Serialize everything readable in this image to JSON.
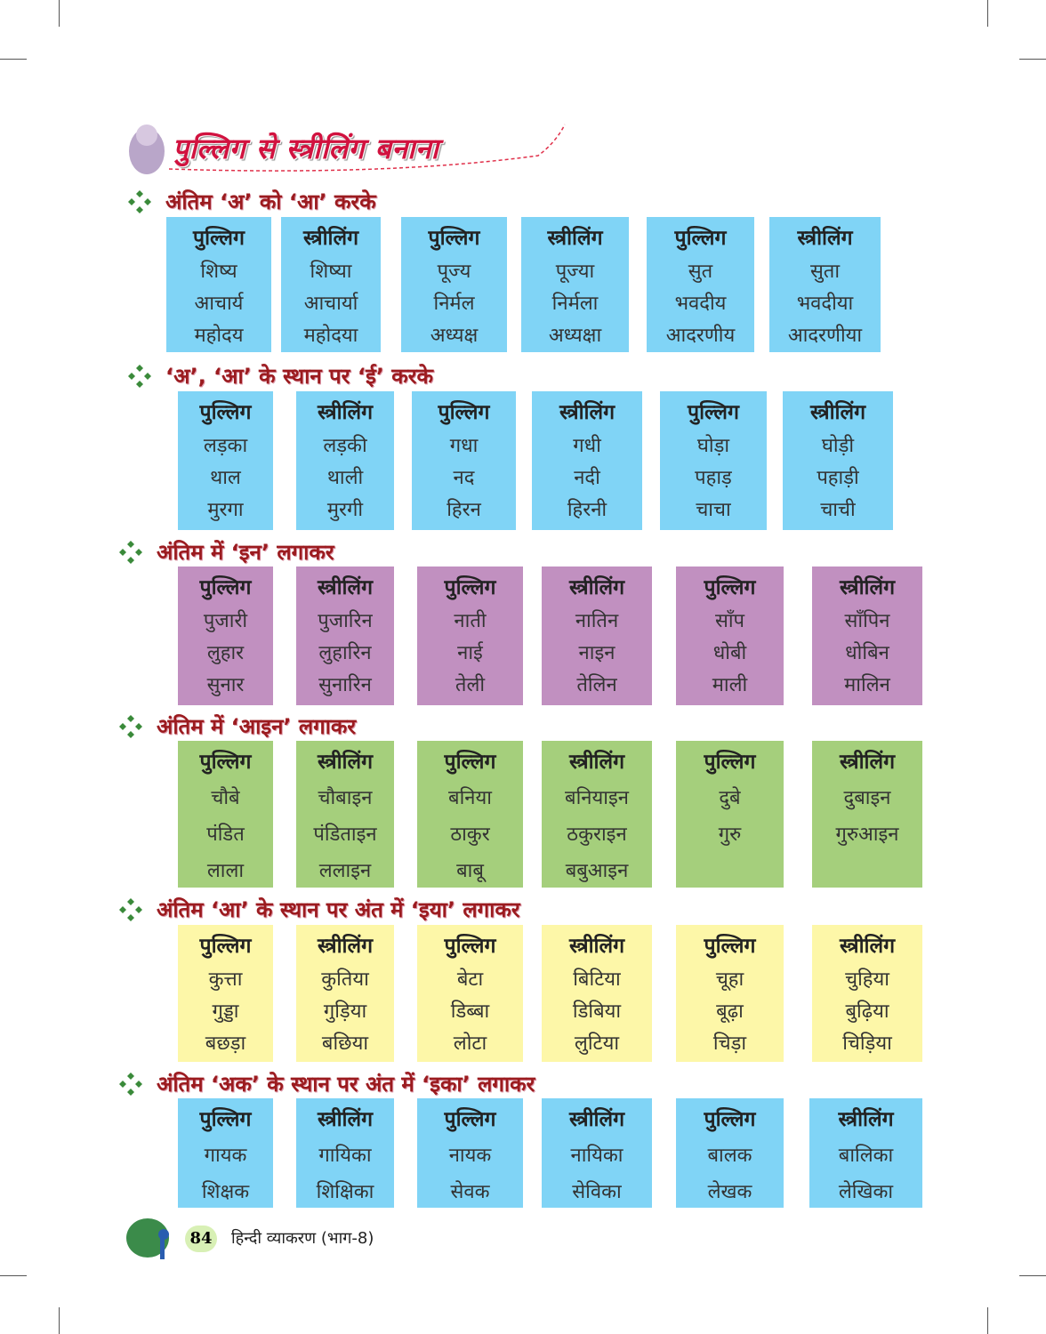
{
  "title": "पुल्लिग से स्त्रीलिंग बनाना",
  "sections": [
    {
      "heading": "अंतिम ‘अ’ को ‘आ’ करके",
      "color": "#80d4f6",
      "columns": [
        {
          "header": "पुल्लिग",
          "words": [
            "शिष्य",
            "आचार्य",
            "महोदय"
          ]
        },
        {
          "header": "स्त्रीलिंग",
          "words": [
            "शिष्या",
            "आचार्या",
            "महोदया"
          ]
        },
        {
          "header": "पुल्लिग",
          "words": [
            "पूज्य",
            "निर्मल",
            "अध्यक्ष"
          ]
        },
        {
          "header": "स्त्रीलिंग",
          "words": [
            "पूज्या",
            "निर्मला",
            "अध्यक्षा"
          ]
        },
        {
          "header": "पुल्लिग",
          "words": [
            "सुत",
            "भवदीय",
            "आदरणीय"
          ]
        },
        {
          "header": "स्त्रीलिंग",
          "words": [
            "सुता",
            "भवदीया",
            "आदरणीया"
          ]
        }
      ]
    },
    {
      "heading": "‘अ’, ‘आ’ के स्थान पर ‘ई’ करके",
      "color": "#80d4f6",
      "columns": [
        {
          "header": "पुल्लिग",
          "words": [
            "लड़का",
            "थाल",
            "मुरगा"
          ]
        },
        {
          "header": "स्त्रीलिंग",
          "words": [
            "लड़की",
            "थाली",
            "मुरगी"
          ]
        },
        {
          "header": "पुल्लिग",
          "words": [
            "गधा",
            "नद",
            "हिरन"
          ]
        },
        {
          "header": "स्त्रीलिंग",
          "words": [
            "गधी",
            "नदी",
            "हिरनी"
          ]
        },
        {
          "header": "पुल्लिग",
          "words": [
            "घोड़ा",
            "पहाड़",
            "चाचा"
          ]
        },
        {
          "header": "स्त्रीलिंग",
          "words": [
            "घोड़ी",
            "पहाड़ी",
            "चाची"
          ]
        }
      ]
    },
    {
      "heading": "अंतिम में ‘इन’ लगाकर",
      "color": "#c190c0",
      "columns": [
        {
          "header": "पुल्लिग",
          "words": [
            "पुजारी",
            "लुहार",
            "सुनार"
          ]
        },
        {
          "header": "स्त्रीलिंग",
          "words": [
            "पुजारिन",
            "लुहारिन",
            "सुनारिन"
          ]
        },
        {
          "header": "पुल्लिग",
          "words": [
            "नाती",
            "नाई",
            "तेली"
          ]
        },
        {
          "header": "स्त्रीलिंग",
          "words": [
            "नातिन",
            "नाइन",
            "तेलिन"
          ]
        },
        {
          "header": "पुल्लिग",
          "words": [
            "साँप",
            "धोबी",
            "माली"
          ]
        },
        {
          "header": "स्त्रीलिंग",
          "words": [
            "साँपिन",
            "धोबिन",
            "मालिन"
          ]
        }
      ]
    },
    {
      "heading": "अंतिम में ‘आइन’ लगाकर",
      "color": "#a5cf7c",
      "columns": [
        {
          "header": "पुल्लिग",
          "words": [
            "चौबे",
            "पंडित",
            "लाला"
          ]
        },
        {
          "header": "स्त्रीलिंग",
          "words": [
            "चौबाइन",
            "पंडिताइन",
            "ललाइन"
          ]
        },
        {
          "header": "पुल्लिग",
          "words": [
            "बनिया",
            "ठाकुर",
            "बाबू"
          ]
        },
        {
          "header": "स्त्रीलिंग",
          "words": [
            "बनियाइन",
            "ठकुराइन",
            "बबुआइन"
          ]
        },
        {
          "header": "पुल्लिग",
          "words": [
            "दुबे",
            "गुरु"
          ]
        },
        {
          "header": "स्त्रीलिंग",
          "words": [
            "दुबाइन",
            "गुरुआइन"
          ]
        }
      ]
    },
    {
      "heading": "अंतिम ‘आ’ के स्थान पर अंत में ‘इया’ लगाकर",
      "color": "#fdf7a8",
      "columns": [
        {
          "header": "पुल्लिग",
          "words": [
            "कुत्ता",
            "गुड्डा",
            "बछड़ा"
          ]
        },
        {
          "header": "स्त्रीलिंग",
          "words": [
            "कुतिया",
            "गुड़िया",
            "बछिया"
          ]
        },
        {
          "header": "पुल्लिग",
          "words": [
            "बेटा",
            "डिब्बा",
            "लोटा"
          ]
        },
        {
          "header": "स्त्रीलिंग",
          "words": [
            "बिटिया",
            "डिबिया",
            "लुटिया"
          ]
        },
        {
          "header": "पुल्लिग",
          "words": [
            "चूहा",
            "बूढ़ा",
            "चिड़ा"
          ]
        },
        {
          "header": "स्त्रीलिंग",
          "words": [
            "चुहिया",
            "बुढ़िया",
            "चिड़िया"
          ]
        }
      ]
    },
    {
      "heading": "अंतिम ‘अक’ के स्थान पर अंत में ‘इका’ लगाकर",
      "color": "#80d4f6",
      "columns": [
        {
          "header": "पुल्लिग",
          "words": [
            "गायक",
            "शिक्षक"
          ]
        },
        {
          "header": "स्त्रीलिंग",
          "words": [
            "गायिका",
            "शिक्षिका"
          ]
        },
        {
          "header": "पुल्लिग",
          "words": [
            "नायक",
            "सेवक"
          ]
        },
        {
          "header": "स्त्रीलिंग",
          "words": [
            "नायिका",
            "सेविका"
          ]
        },
        {
          "header": "पुल्लिग",
          "words": [
            "बालक",
            "लेखक"
          ]
        },
        {
          "header": "स्त्रीलिंग",
          "words": [
            "बालिका",
            "लेखिका"
          ]
        }
      ]
    }
  ],
  "footer": {
    "page_number": "84",
    "book_title": "हिन्दी व्याकरण (भाग-8)"
  }
}
